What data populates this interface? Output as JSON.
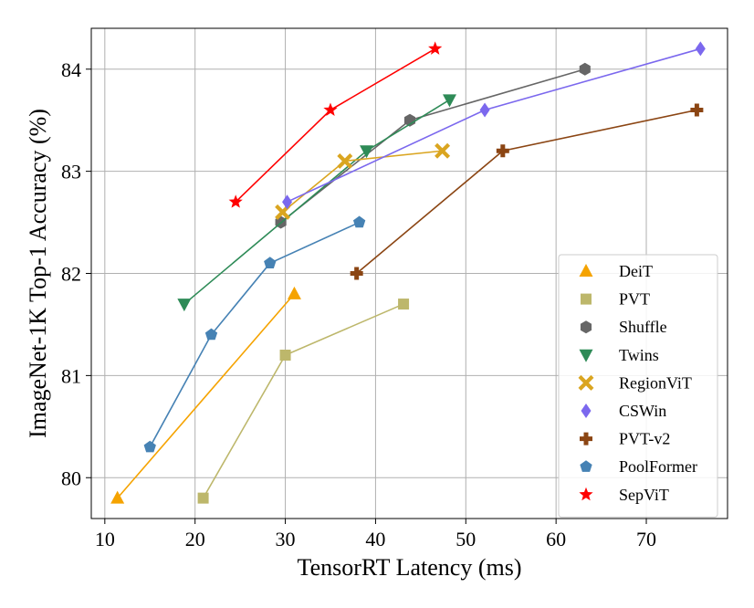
{
  "chart_data": {
    "type": "line",
    "title": "",
    "xlabel": "TensorRT Latency (ms)",
    "ylabel": "ImageNet-1K Top-1 Accuracy (%)",
    "xlim": [
      8.5,
      79
    ],
    "ylim": [
      79.6,
      84.4
    ],
    "xticks": [
      10,
      20,
      30,
      40,
      50,
      60,
      70
    ],
    "yticks": [
      80,
      81,
      82,
      83,
      84
    ],
    "grid": true,
    "legend_position": "lower-right",
    "series": [
      {
        "name": "DeiT",
        "color": "#f5a300",
        "marker": "triangle-up",
        "x": [
          11.4,
          31.0
        ],
        "y": [
          79.8,
          81.8
        ]
      },
      {
        "name": "PVT",
        "color": "#bdb76b",
        "marker": "square",
        "x": [
          20.9,
          30.0,
          43.1
        ],
        "y": [
          79.8,
          81.2,
          81.7
        ]
      },
      {
        "name": "Shuffle",
        "color": "#666666",
        "marker": "hexagon",
        "x": [
          29.5,
          43.8,
          63.2
        ],
        "y": [
          82.5,
          83.5,
          84.0
        ]
      },
      {
        "name": "Twins",
        "color": "#2e8b57",
        "marker": "triangle-down",
        "x": [
          18.8,
          39.0,
          48.2
        ],
        "y": [
          81.7,
          83.2,
          83.7
        ]
      },
      {
        "name": "RegionViT",
        "color": "#daa520",
        "marker": "x",
        "x": [
          29.7,
          36.6,
          47.4
        ],
        "y": [
          82.6,
          83.1,
          83.2
        ]
      },
      {
        "name": "CSWin",
        "color": "#7b68ee",
        "marker": "diamond",
        "x": [
          30.2,
          52.1,
          76.0
        ],
        "y": [
          82.7,
          83.6,
          84.2
        ]
      },
      {
        "name": "PVT-v2",
        "color": "#8b4513",
        "marker": "plus",
        "x": [
          37.9,
          54.1,
          75.6
        ],
        "y": [
          82.0,
          83.2,
          83.6
        ]
      },
      {
        "name": "PoolFormer",
        "color": "#4682b4",
        "marker": "pentagon",
        "x": [
          15.0,
          21.8,
          28.3,
          38.2
        ],
        "y": [
          80.3,
          81.4,
          82.1,
          82.5
        ]
      },
      {
        "name": "SepViT",
        "color": "#ff0000",
        "marker": "star",
        "x": [
          24.5,
          35.0,
          46.6
        ],
        "y": [
          82.7,
          83.6,
          84.2
        ]
      }
    ]
  }
}
